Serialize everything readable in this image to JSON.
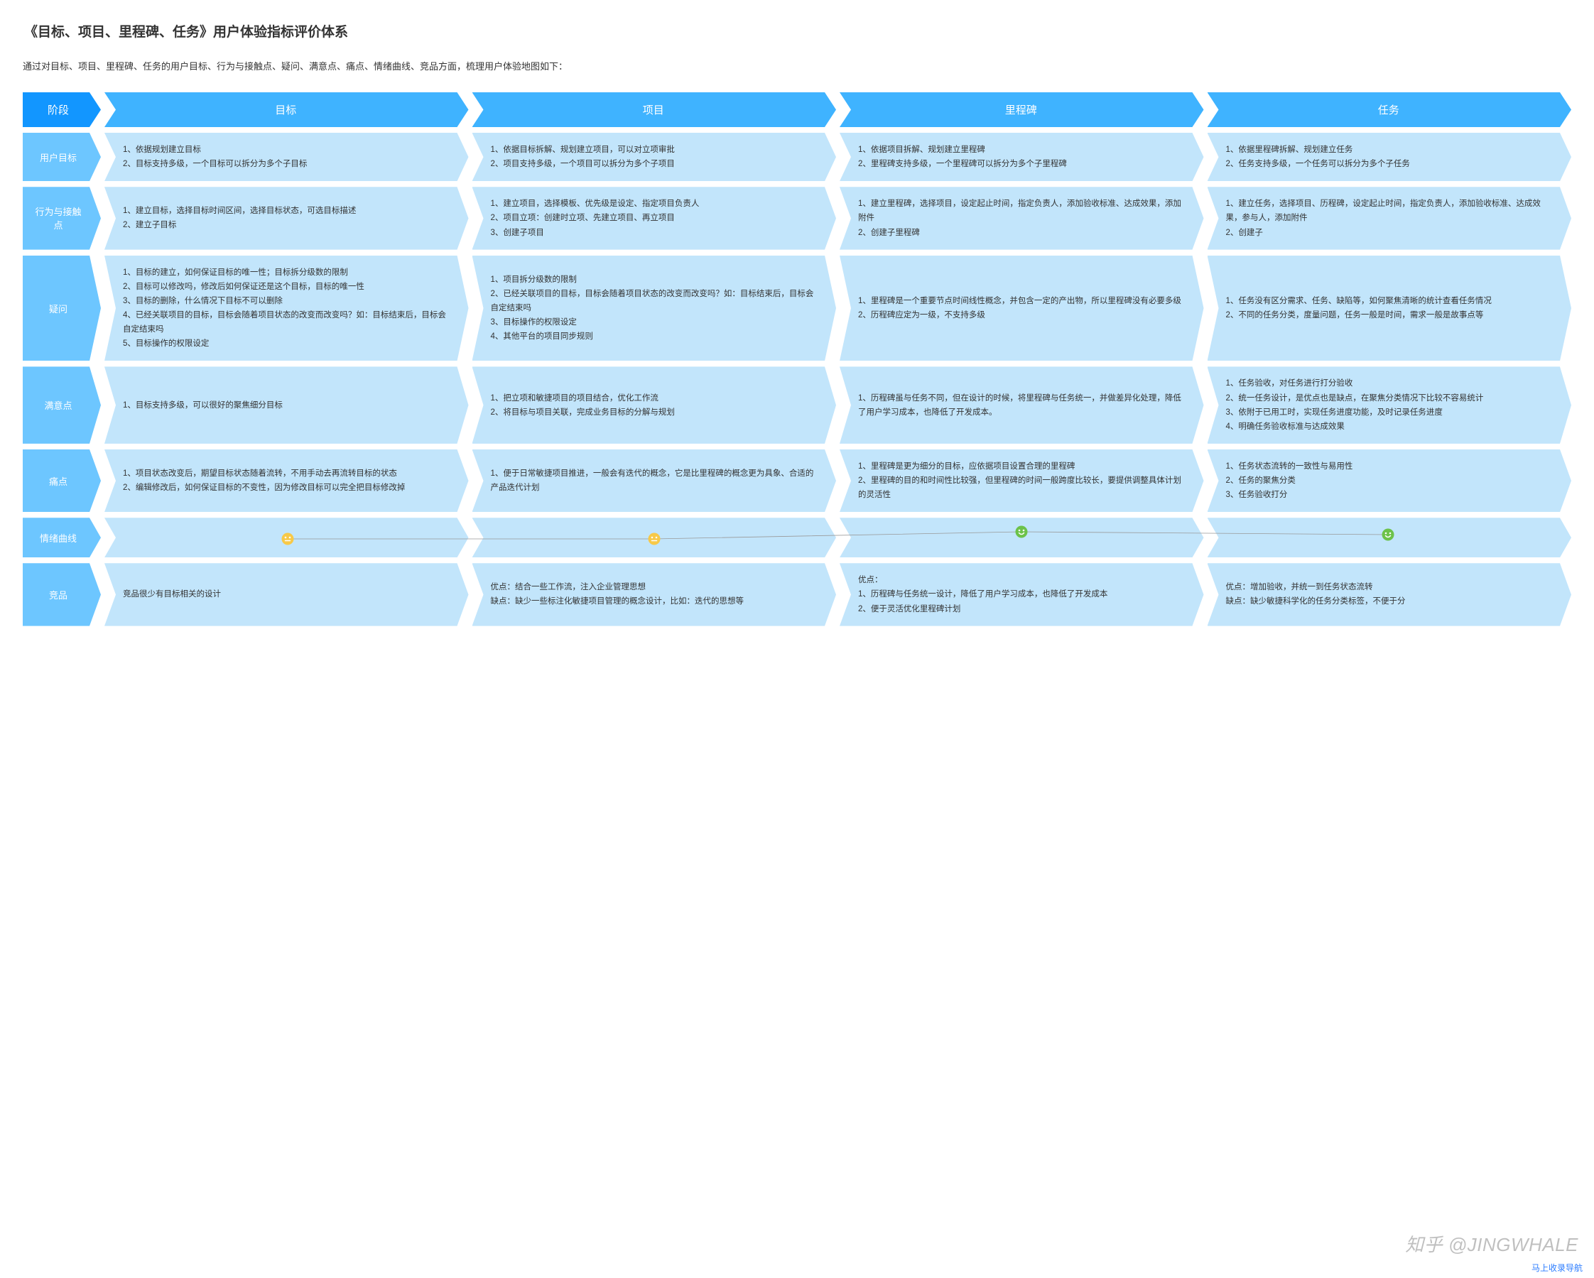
{
  "title": "《目标、项目、里程碑、任务》用户体验指标评价体系",
  "subtitle": "通过对目标、项目、里程碑、任务的用户目标、行为与接触点、疑问、满意点、痛点、情绪曲线、竞品方面，梳理用户体验地图如下：",
  "watermark": "知乎 @JINGWHALE",
  "footer_link": "马上收录导航",
  "colors": {
    "header_label_bg": "#1296ff",
    "header_cols_bg": "#3fb3ff",
    "row_label_bg": "#6dc6ff",
    "cell_bg": "#c2e5fb",
    "text": "#333333",
    "white": "#ffffff",
    "line": "#999999",
    "face_neutral": "#f7c948",
    "face_happy": "#6cc24a"
  },
  "columns": [
    "目标",
    "项目",
    "里程碑",
    "任务"
  ],
  "stage_label": "阶段",
  "rows": [
    {
      "label": "用户目标",
      "cells": [
        [
          "1、依据规划建立目标",
          "2、目标支持多级，一个目标可以拆分为多个子目标"
        ],
        [
          "1、依据目标拆解、规划建立项目，可以对立项审批",
          "2、项目支持多级，一个项目可以拆分为多个子项目"
        ],
        [
          "1、依据项目拆解、规划建立里程碑",
          "2、里程碑支持多级，一个里程碑可以拆分为多个子里程碑"
        ],
        [
          "1、依据里程碑拆解、规划建立任务",
          "2、任务支持多级，一个任务可以拆分为多个子任务"
        ]
      ]
    },
    {
      "label": "行为与接触点",
      "cells": [
        [
          "1、建立目标，选择目标时间区间，选择目标状态，可选目标描述",
          "2、建立子目标"
        ],
        [
          "1、建立项目，选择模板、优先级是设定、指定项目负责人",
          "2、项目立项：创建时立项、先建立项目、再立项目",
          "3、创建子项目"
        ],
        [
          "1、建立里程碑，选择项目，设定起止时间，指定负责人，添加验收标准、达成效果，添加附件",
          "2、创建子里程碑"
        ],
        [
          "1、建立任务，选择项目、历程碑，设定起止时间，指定负责人，添加验收标准、达成效果，参与人，添加附件",
          "2、创建子"
        ]
      ]
    },
    {
      "label": "疑问",
      "cells": [
        [
          "1、目标的建立，如何保证目标的唯一性；目标拆分级数的限制",
          "2、目标可以修改吗，修改后如何保证还是这个目标，目标的唯一性",
          "3、目标的删除，什么情况下目标不可以删除",
          "4、已经关联项目的目标，目标会随着项目状态的改变而改变吗？如：目标结束后，目标会自定结束吗",
          "5、目标操作的权限设定"
        ],
        [
          "1、项目拆分级数的限制",
          "2、已经关联项目的目标，目标会随着项目状态的改变而改变吗？如：目标结束后，目标会自定结束吗",
          "3、目标操作的权限设定",
          "4、其他平台的项目同步规则"
        ],
        [
          "1、里程碑是一个重要节点时间线性概念，并包含一定的产出物，所以里程碑没有必要多级",
          "2、历程碑应定为一级，不支持多级"
        ],
        [
          "1、任务没有区分需求、任务、缺陷等，如何聚焦清晰的统计查看任务情况",
          "2、不同的任务分类，度量问题，任务一般是时间，需求一般是故事点等"
        ]
      ]
    },
    {
      "label": "满意点",
      "cells": [
        [
          "1、目标支持多级，可以很好的聚焦细分目标"
        ],
        [
          "1、把立项和敏捷项目的项目结合，优化工作流",
          "2、将目标与项目关联，完成业务目标的分解与规划"
        ],
        [
          "1、历程碑虽与任务不同，但在设计的时候，将里程碑与任务统一，并做差异化处理，降低了用户学习成本，也降低了开发成本。"
        ],
        [
          "1、任务验收，对任务进行打分验收",
          "2、统一任务设计，是优点也是缺点，在聚焦分类情况下比较不容易统计",
          "3、依附于已用工时，实现任务进度功能，及时记录任务进度",
          "4、明确任务验收标准与达成效果"
        ]
      ]
    },
    {
      "label": "痛点",
      "cells": [
        [
          "1、项目状态改变后，期望目标状态随着流转，不用手动去再流转目标的状态",
          "2、编辑修改后，如何保证目标的不变性，因为修改目标可以完全把目标修改掉"
        ],
        [
          "1、便于日常敏捷项目推进，一般会有迭代的概念，它是比里程碑的概念更为具象、合适的产品迭代计划"
        ],
        [
          "1、里程碑是更为细分的目标，应依据项目设置合理的里程碑",
          "2、里程碑的目的和时间性比较强，但里程碑的时间一般跨度比较长，要提供调整具体计划的灵活性"
        ],
        [
          "1、任务状态流转的一致性与易用性",
          "2、任务的聚焦分类",
          "3、任务验收打分"
        ]
      ]
    },
    {
      "label": "情绪曲线",
      "type": "emotion",
      "points": [
        {
          "mood": "neutral",
          "y": 0.55
        },
        {
          "mood": "neutral",
          "y": 0.55
        },
        {
          "mood": "happy",
          "y": 0.3
        },
        {
          "mood": "happy",
          "y": 0.4
        }
      ]
    },
    {
      "label": "竞品",
      "cells": [
        [
          "竞品很少有目标相关的设计"
        ],
        [
          "优点：结合一些工作流，注入企业管理思想",
          "缺点：缺少一些标注化敏捷项目管理的概念设计，比如：迭代的思想等"
        ],
        [
          "优点：",
          "1、历程碑与任务统一设计，降低了用户学习成本，也降低了开发成本",
          "2、便于灵活优化里程碑计划"
        ],
        [
          "优点：增加验收，并统一到任务状态流转",
          "缺点：缺少敏捷科学化的任务分类标签，不便于分"
        ]
      ]
    }
  ]
}
